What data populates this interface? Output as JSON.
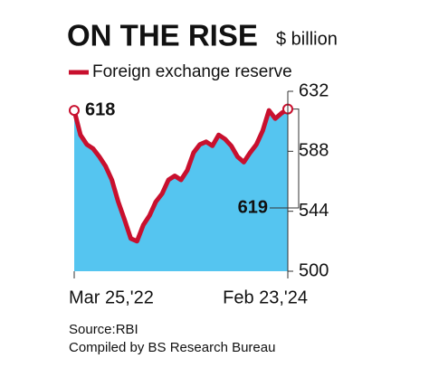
{
  "chart_data": {
    "type": "area-line",
    "title": "ON THE RISE",
    "ylabel": "$ billion",
    "categories": [
      "Mar 25,'22",
      null,
      null,
      null,
      null,
      null,
      null,
      null,
      null,
      null,
      null,
      null,
      null,
      null,
      null,
      null,
      null,
      null,
      null,
      null,
      null,
      null,
      null,
      null,
      null,
      null,
      null,
      null,
      null,
      null,
      null,
      null,
      null,
      null,
      "Feb 23,'24"
    ],
    "series": [
      {
        "name": "Foreign exchange reserve",
        "color": "#c8102e",
        "fill": "#55c5f0",
        "values": [
          618,
          600,
          593,
          590,
          584,
          577,
          567,
          551,
          538,
          524,
          522,
          534,
          541,
          551,
          557,
          567,
          570,
          567,
          574,
          587,
          593,
          595,
          592,
          600,
          597,
          592,
          584,
          580,
          587,
          593,
          603,
          618,
          612,
          616,
          619
        ]
      }
    ],
    "ylim": [
      500,
      632
    ],
    "yticks": [
      500,
      544,
      588,
      632
    ],
    "sources": [
      "Source:RBI",
      "Compiled by BS Research Bureau"
    ]
  }
}
